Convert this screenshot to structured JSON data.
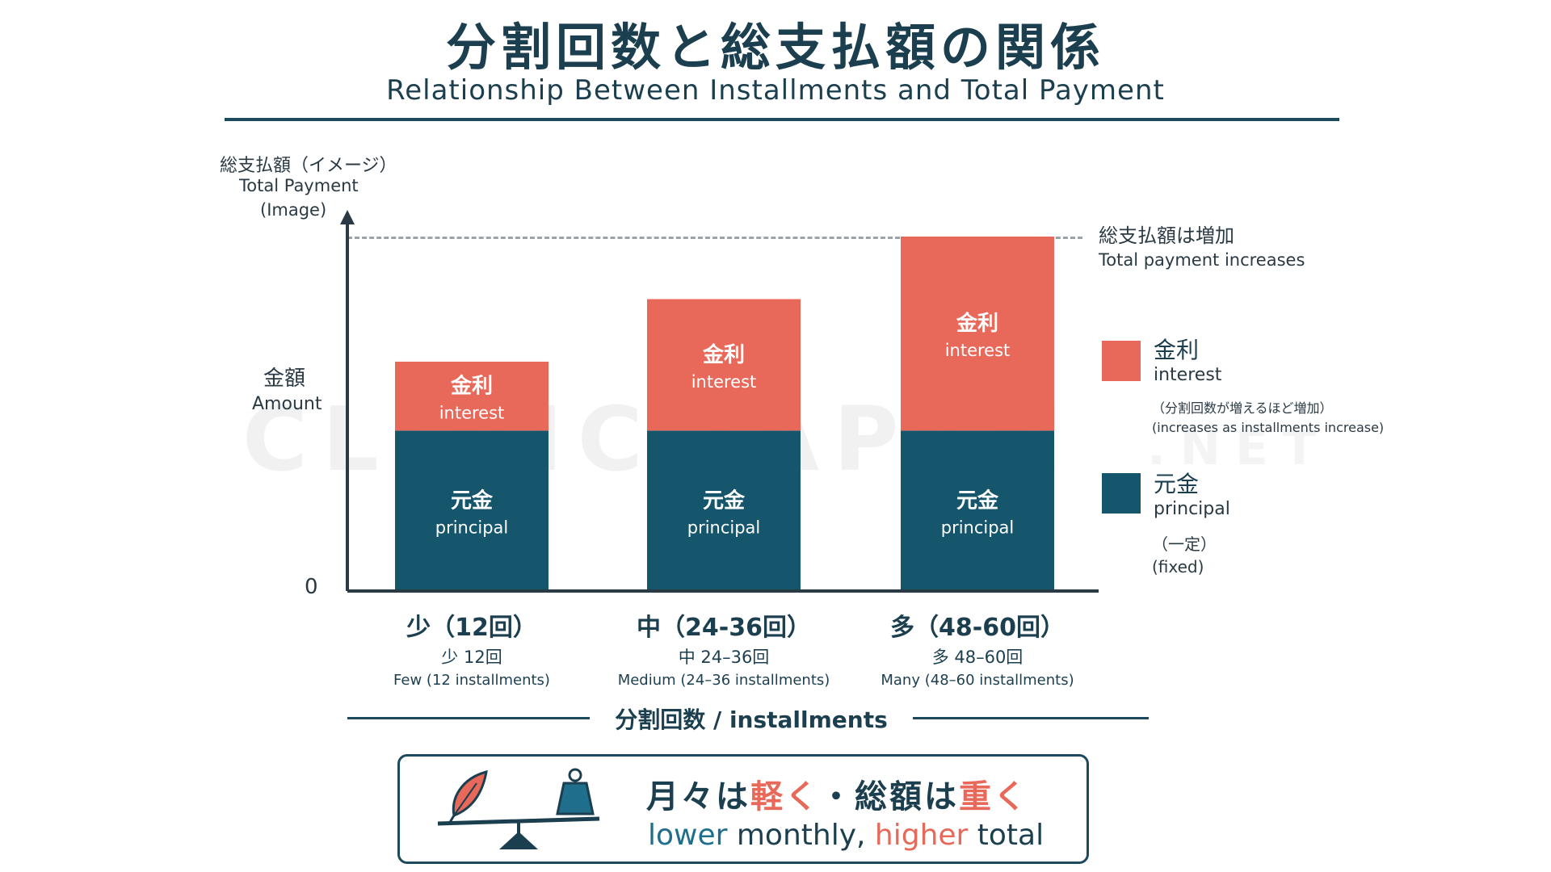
{
  "title": {
    "jp": "分割回数と総支払額の関係",
    "en": "Relationship Between Installments and Total Payment"
  },
  "yaxis": {
    "title_jp": "総支払額（イメージ）",
    "title_en": "Total Payment",
    "title_en2": "(Image)",
    "amount_jp": "金額",
    "amount_en": "Amount",
    "zero": "0"
  },
  "annotation": {
    "jp": "総支払額は増加",
    "en": "Total payment increases"
  },
  "legend": {
    "interest": {
      "jp": "金利",
      "en": "interest",
      "note_jp": "（分割回数が増えるほど増加）",
      "note_en": "(increases as installments increase)",
      "color": "#e8685a"
    },
    "principal": {
      "jp": "元金",
      "en": "principal",
      "note_jp": "（一定）",
      "note_en": "(fixed)",
      "color": "#15566d"
    }
  },
  "xaxis": {
    "title": "分割回数 / installments"
  },
  "chart_data": {
    "type": "bar",
    "stacked": true,
    "categories": [
      "少（12回）",
      "中（24-36回）",
      "多（48-60回）"
    ],
    "categories_sub": [
      "少 12回",
      "中 24–36回",
      "多 48–60回"
    ],
    "categories_en": [
      "Few (12 installments)",
      "Medium (24–36 installments)",
      "Many (48–60 installments)"
    ],
    "series": [
      {
        "name": "元金 principal",
        "label_jp": "元金",
        "label_en": "principal",
        "values": [
          100,
          100,
          100
        ],
        "color": "#15566d"
      },
      {
        "name": "金利 interest",
        "label_jp": "金利",
        "label_en": "interest",
        "values": [
          43,
          82,
          121
        ],
        "color": "#e8685a"
      }
    ],
    "ylim": [
      0,
      221
    ],
    "reference_line": 221,
    "grid": false,
    "legend_position": "right"
  },
  "takeaway": {
    "jp_part1": "月々は",
    "jp_hl1": "軽く",
    "jp_part2": "・総額は",
    "jp_hl2": "重く",
    "en_part1": "lower",
    "en_part2": " monthly, ",
    "en_part3": "higher",
    "en_part4": " total"
  },
  "watermark": {
    "main": "CLINIC JAPAN",
    "suffix": ".NET"
  },
  "icons": [
    "feather-icon",
    "weight-icon",
    "balance-scale-icon"
  ]
}
